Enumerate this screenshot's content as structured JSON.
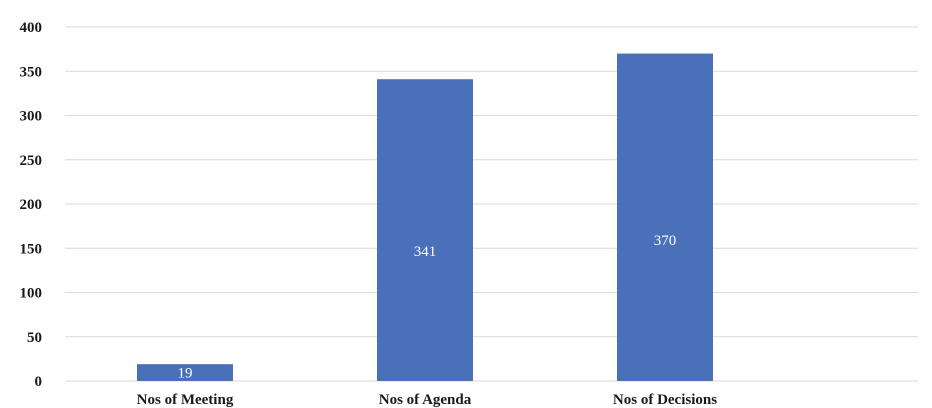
{
  "chart_data": {
    "type": "bar",
    "title": "",
    "xlabel": "",
    "ylabel": "",
    "categories": [
      "Nos of Meeting",
      "Nos of Agenda",
      "Nos of Decisions"
    ],
    "values": [
      19,
      341,
      370
    ],
    "data_labels": [
      "19",
      "341",
      "370"
    ],
    "ylim": [
      0,
      400
    ],
    "yticks": [
      0,
      50,
      100,
      150,
      200,
      250,
      300,
      350,
      400
    ],
    "ytick_labels": [
      "0",
      "50",
      "100",
      "150",
      "200",
      "250",
      "300",
      "350",
      "400"
    ],
    "grid": true,
    "legend": "none",
    "bar_color": "#4a70b9",
    "grid_color": "#d9d9d9"
  }
}
